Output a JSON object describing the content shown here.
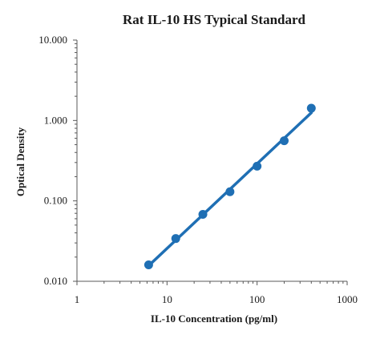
{
  "chart_data": {
    "type": "scatter",
    "title": "Rat IL-10 HS Typical Standard",
    "xlabel": "IL-10  Concentration (pg/ml)",
    "ylabel": "Optical Density",
    "x_scale": "log",
    "y_scale": "log",
    "xlim": [
      1,
      1000
    ],
    "ylim": [
      0.01,
      10
    ],
    "x_tick_values": [
      1,
      10,
      100,
      1000
    ],
    "x_tick_labels": [
      "1",
      "10",
      "100",
      "1000"
    ],
    "y_tick_values": [
      0.01,
      0.1,
      1,
      10
    ],
    "y_tick_labels": [
      "0.010",
      "0.100",
      "1.000",
      "10.000"
    ],
    "grid": false,
    "legend": "none",
    "series": [
      {
        "x": [
          6.25,
          12.5,
          25,
          50,
          100,
          200,
          400
        ],
        "y": [
          0.016,
          0.034,
          0.068,
          0.13,
          0.27,
          0.56,
          1.42
        ],
        "color": "#1f6fb4",
        "marker": "circle",
        "trendline": "power"
      }
    ]
  }
}
